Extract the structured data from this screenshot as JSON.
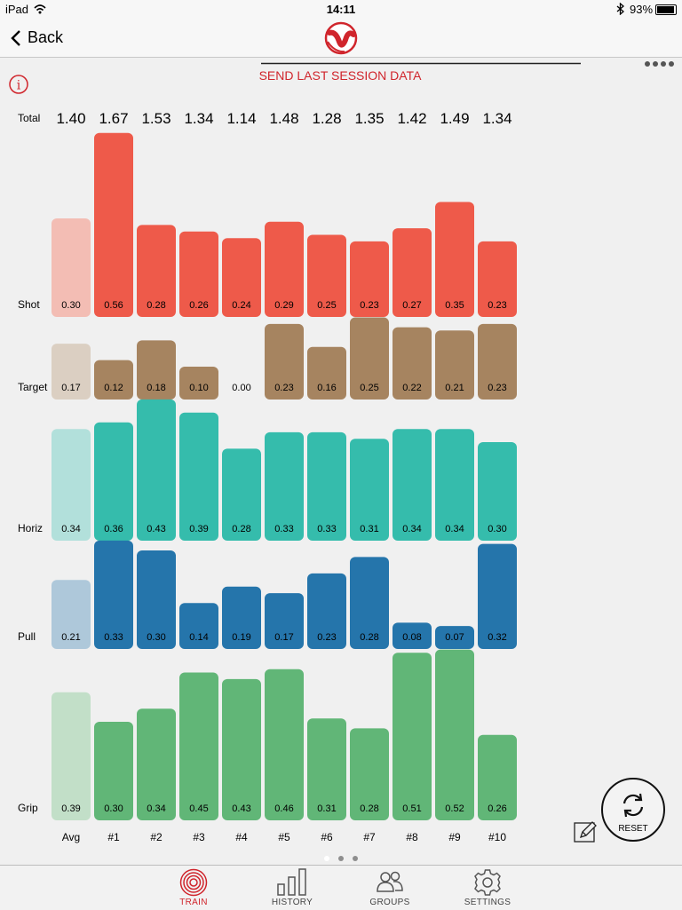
{
  "status_bar": {
    "carrier": "iPad",
    "time": "14:11",
    "battery": "93%"
  },
  "nav": {
    "back_label": "Back"
  },
  "header": {
    "send_label": "SEND LAST SESSION DATA"
  },
  "tabs": [
    {
      "label": "TRAIN",
      "icon": "target-icon",
      "active": true
    },
    {
      "label": "HISTORY",
      "icon": "bar-chart-icon",
      "active": false
    },
    {
      "label": "GROUPS",
      "icon": "people-icon",
      "active": false
    },
    {
      "label": "SETTINGS",
      "icon": "gear-icon",
      "active": false
    }
  ],
  "reset_label": "RESET",
  "colors": {
    "accent": "#d0252c",
    "shot": "#ee5a4a",
    "target": "#a68460",
    "horiz": "#35bcac",
    "pull": "#2575ab",
    "grip": "#61b677"
  },
  "chart_data": {
    "type": "bar",
    "categories": [
      "Avg",
      "#1",
      "#2",
      "#3",
      "#4",
      "#5",
      "#6",
      "#7",
      "#8",
      "#9",
      "#10"
    ],
    "totals_label": "Total",
    "totals": [
      "1.40",
      "1.67",
      "1.53",
      "1.34",
      "1.14",
      "1.48",
      "1.28",
      "1.35",
      "1.42",
      "1.49",
      "1.34"
    ],
    "series": [
      {
        "name": "Shot",
        "color": "#ee5a4a",
        "avg_color": "#f3bdb4",
        "values": [
          0.3,
          0.56,
          0.28,
          0.26,
          0.24,
          0.29,
          0.25,
          0.23,
          0.27,
          0.35,
          0.23
        ],
        "labels": [
          "0.30",
          "0.56",
          "0.28",
          "0.26",
          "0.24",
          "0.29",
          "0.25",
          "0.23",
          "0.27",
          "0.35",
          "0.23"
        ]
      },
      {
        "name": "Target",
        "color": "#a68460",
        "avg_color": "#dbcfc2",
        "values": [
          0.17,
          0.12,
          0.18,
          0.1,
          0.0,
          0.23,
          0.16,
          0.25,
          0.22,
          0.21,
          0.23
        ],
        "labels": [
          "0.17",
          "0.12",
          "0.18",
          "0.10",
          "0.00",
          "0.23",
          "0.16",
          "0.25",
          "0.22",
          "0.21",
          "0.23"
        ]
      },
      {
        "name": "Horiz",
        "color": "#35bcac",
        "avg_color": "#b2e0db",
        "values": [
          0.34,
          0.36,
          0.43,
          0.39,
          0.28,
          0.33,
          0.33,
          0.31,
          0.34,
          0.34,
          0.3
        ],
        "labels": [
          "0.34",
          "0.36",
          "0.43",
          "0.39",
          "0.28",
          "0.33",
          "0.33",
          "0.31",
          "0.34",
          "0.34",
          "0.30"
        ]
      },
      {
        "name": "Pull",
        "color": "#2575ab",
        "avg_color": "#aec8da",
        "values": [
          0.21,
          0.33,
          0.3,
          0.14,
          0.19,
          0.17,
          0.23,
          0.28,
          0.08,
          0.07,
          0.32
        ],
        "labels": [
          "0.21",
          "0.33",
          "0.30",
          "0.14",
          "0.19",
          "0.17",
          "0.23",
          "0.28",
          "0.08",
          "0.07",
          "0.32"
        ]
      },
      {
        "name": "Grip",
        "color": "#61b677",
        "avg_color": "#c2dfc8",
        "values": [
          0.39,
          0.3,
          0.34,
          0.45,
          0.43,
          0.46,
          0.31,
          0.28,
          0.51,
          0.52,
          0.26
        ],
        "labels": [
          "0.39",
          "0.30",
          "0.34",
          "0.45",
          "0.43",
          "0.46",
          "0.31",
          "0.28",
          "0.51",
          "0.52",
          "0.26"
        ]
      }
    ]
  }
}
